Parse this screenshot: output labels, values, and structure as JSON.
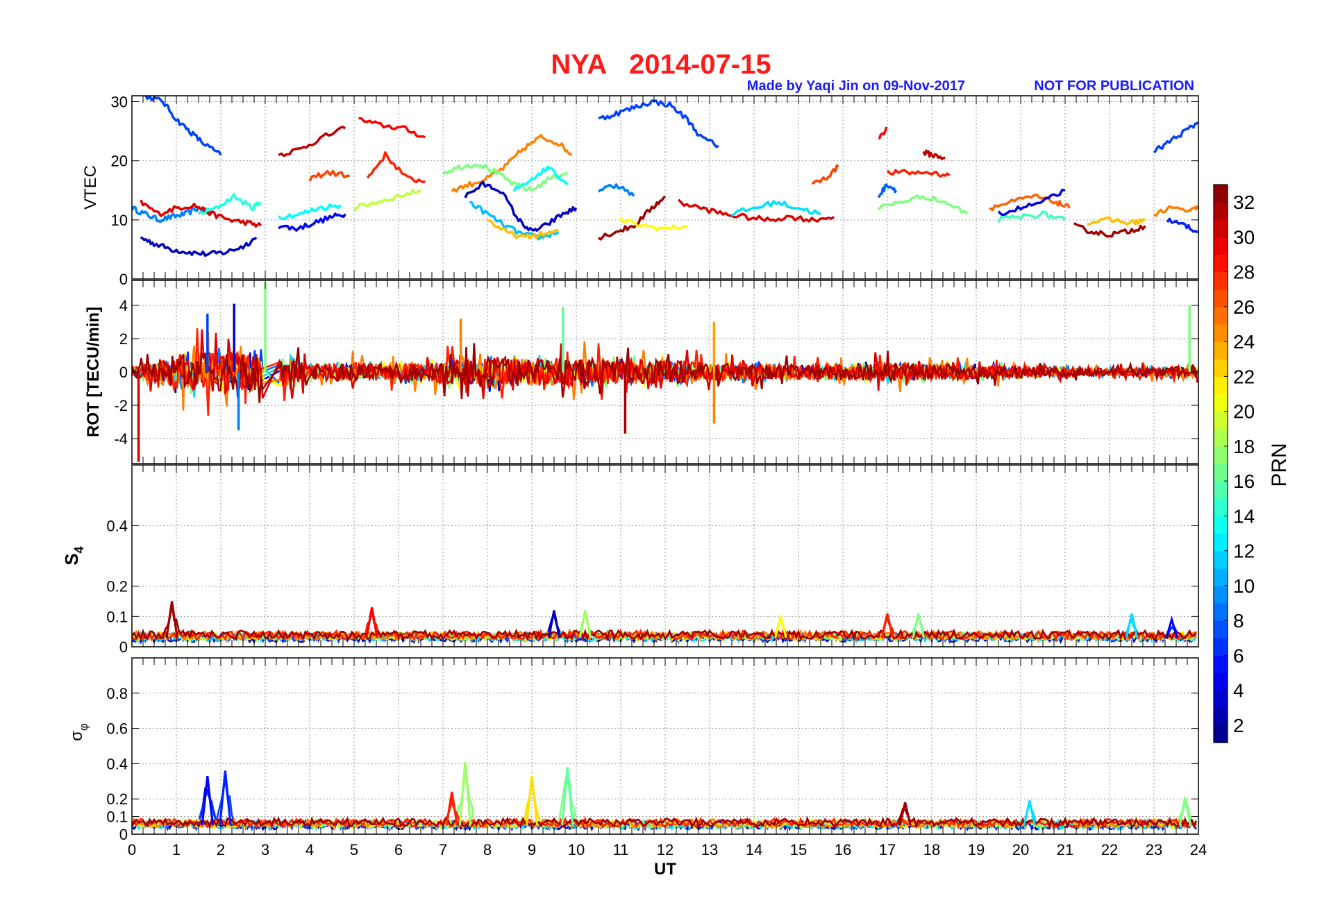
{
  "figure": {
    "title": "NYA   2014-07-15",
    "credit": "Made by Yaqi Jin on 09-Nov-2017",
    "notice": "NOT FOR PUBLICATION",
    "title_color": "#ff1a1a",
    "credit_color": "#1a1aff"
  },
  "chart_data": [
    {
      "type": "line",
      "panel": "vtec",
      "ylabel": "VTEC",
      "xlim": [
        0,
        24
      ],
      "ylim": [
        0,
        31
      ],
      "yticks": [
        0,
        10,
        20,
        30
      ],
      "grid": true,
      "series": [
        {
          "prn": 9,
          "x": [
            0.0,
            0.3,
            0.6,
            0.9,
            1.2,
            1.5,
            1.8
          ],
          "y": [
            12,
            11,
            10,
            10.5,
            11,
            12,
            11
          ]
        },
        {
          "prn": 3,
          "x": [
            0.2,
            0.5,
            0.9,
            1.3,
            1.7,
            2.1,
            2.5,
            2.8
          ],
          "y": [
            7,
            6,
            5,
            4.5,
            4.2,
            4.5,
            5.5,
            7
          ]
        },
        {
          "prn": 7,
          "x": [
            0.3,
            0.7,
            1.0,
            1.3,
            1.6,
            2.0
          ],
          "y": [
            31,
            30,
            27,
            25,
            23,
            21
          ]
        },
        {
          "prn": 30,
          "x": [
            0.2,
            0.6,
            1.0,
            1.4,
            1.8,
            2.2,
            2.6,
            2.9
          ],
          "y": [
            13,
            11,
            12,
            12.5,
            11,
            10,
            9.5,
            9
          ]
        },
        {
          "prn": 14,
          "x": [
            1.5,
            1.9,
            2.3,
            2.7,
            2.9
          ],
          "y": [
            11,
            12,
            14,
            12,
            13
          ]
        },
        {
          "prn": 5,
          "x": [
            3.3,
            3.7,
            4.1,
            4.5,
            4.8
          ],
          "y": [
            9,
            8.5,
            9.5,
            10.5,
            11
          ]
        },
        {
          "prn": 13,
          "x": [
            3.3,
            3.8,
            4.2,
            4.7
          ],
          "y": [
            10.5,
            11,
            12,
            12.5
          ]
        },
        {
          "prn": 31,
          "x": [
            3.3,
            3.8,
            4.3,
            4.8
          ],
          "y": [
            21,
            22,
            24,
            25.5
          ]
        },
        {
          "prn": 27,
          "x": [
            4.0,
            4.4,
            4.9
          ],
          "y": [
            17,
            18,
            17.5
          ]
        },
        {
          "prn": 29,
          "x": [
            5.1,
            5.6,
            6.1,
            6.6
          ],
          "y": [
            27,
            26,
            25.5,
            24
          ]
        },
        {
          "prn": 28,
          "x": [
            5.3,
            5.7,
            6.2,
            6.6
          ],
          "y": [
            17,
            21,
            17,
            16.5
          ]
        },
        {
          "prn": 19,
          "x": [
            5.0,
            5.5,
            6.0,
            6.5
          ],
          "y": [
            12,
            13,
            14,
            15
          ]
        },
        {
          "prn": 25,
          "x": [
            7.2,
            7.6,
            8.0,
            8.4,
            8.8,
            9.2,
            9.6,
            9.9
          ],
          "y": [
            15,
            16,
            17,
            19,
            22,
            24,
            23,
            21
          ]
        },
        {
          "prn": 17,
          "x": [
            7.0,
            7.4,
            7.8,
            8.2,
            8.6,
            9.0,
            9.4,
            9.8
          ],
          "y": [
            18,
            19,
            19.5,
            18,
            16,
            15,
            17,
            18
          ]
        },
        {
          "prn": 3,
          "x": [
            7.5,
            7.9,
            8.3,
            8.7,
            9.0,
            9.3,
            9.7,
            10.0
          ],
          "y": [
            14,
            16,
            15,
            10,
            8,
            9,
            11,
            12
          ]
        },
        {
          "prn": 11,
          "x": [
            7.6,
            8.0,
            8.4,
            8.8,
            9.2,
            9.6
          ],
          "y": [
            13,
            11,
            9,
            7.5,
            7,
            8
          ]
        },
        {
          "prn": 23,
          "x": [
            8.0,
            8.4,
            8.8,
            9.2,
            9.6
          ],
          "y": [
            10,
            8,
            7,
            7.5,
            8
          ]
        },
        {
          "prn": 13,
          "x": [
            8.6,
            9.0,
            9.4,
            9.8
          ],
          "y": [
            15,
            17,
            19,
            16
          ]
        },
        {
          "prn": 32,
          "x": [
            10.5,
            10.9,
            11.3,
            11.7,
            12.0
          ],
          "y": [
            7,
            8,
            9,
            12,
            14
          ]
        },
        {
          "prn": 7,
          "x": [
            10.5,
            10.9,
            11.3,
            11.7,
            12.1,
            12.5,
            12.8,
            13.2
          ],
          "y": [
            27,
            28,
            29,
            30,
            29.5,
            27,
            24,
            22.5
          ]
        },
        {
          "prn": 9,
          "x": [
            10.5,
            10.9,
            11.3
          ],
          "y": [
            15,
            16,
            14
          ]
        },
        {
          "prn": 21,
          "x": [
            11.0,
            11.5,
            12.0,
            12.5
          ],
          "y": [
            10,
            9,
            8.5,
            9
          ]
        },
        {
          "prn": 30,
          "x": [
            12.3,
            12.8,
            13.3,
            13.8,
            14.3,
            14.8,
            15.3,
            15.8
          ],
          "y": [
            13,
            12,
            11,
            10.5,
            10,
            10.5,
            10,
            10.5
          ]
        },
        {
          "prn": 12,
          "x": [
            13.5,
            14.0,
            14.5,
            15.0,
            15.5
          ],
          "y": [
            11,
            12,
            13,
            12,
            11
          ]
        },
        {
          "prn": 27,
          "x": [
            15.3,
            15.6,
            15.9
          ],
          "y": [
            16,
            17,
            19
          ]
        },
        {
          "prn": 29,
          "x": [
            16.8,
            17.0
          ],
          "y": [
            24,
            25.5
          ]
        },
        {
          "prn": 28,
          "x": [
            17.0,
            17.5,
            18.0,
            18.4
          ],
          "y": [
            18,
            18,
            18,
            17.5
          ]
        },
        {
          "prn": 31,
          "x": [
            17.8,
            18.0,
            18.3
          ],
          "y": [
            21.5,
            21,
            20.5
          ]
        },
        {
          "prn": 17,
          "x": [
            16.8,
            17.3,
            17.8,
            18.3,
            18.8
          ],
          "y": [
            12,
            13,
            14,
            13,
            11
          ]
        },
        {
          "prn": 8,
          "x": [
            16.8,
            17.0,
            17.2
          ],
          "y": [
            14,
            16,
            15
          ]
        },
        {
          "prn": 26,
          "x": [
            19.3,
            19.8,
            20.3,
            20.8,
            21.1
          ],
          "y": [
            12,
            13,
            14,
            13,
            12
          ]
        },
        {
          "prn": 4,
          "x": [
            19.5,
            20.0,
            20.5,
            21.0
          ],
          "y": [
            11,
            12,
            13,
            15
          ]
        },
        {
          "prn": 15,
          "x": [
            19.5,
            20.0,
            20.5,
            21.0
          ],
          "y": [
            10,
            10.5,
            11,
            10
          ]
        },
        {
          "prn": 32,
          "x": [
            21.2,
            21.6,
            22.0,
            22.4,
            22.8
          ],
          "y": [
            9,
            8,
            7.5,
            8,
            9
          ]
        },
        {
          "prn": 23,
          "x": [
            21.5,
            22.0,
            22.5,
            22.8
          ],
          "y": [
            9.5,
            10,
            9.5,
            10
          ]
        },
        {
          "prn": 7,
          "x": [
            23.0,
            23.3,
            23.7,
            24.0
          ],
          "y": [
            21.5,
            23,
            25,
            26.5
          ]
        },
        {
          "prn": 25,
          "x": [
            23.0,
            23.4,
            23.8,
            24.0
          ],
          "y": [
            11,
            12,
            11.5,
            12
          ]
        },
        {
          "prn": 6,
          "x": [
            23.3,
            23.7,
            24.0
          ],
          "y": [
            10,
            9,
            8
          ]
        }
      ]
    },
    {
      "type": "line",
      "panel": "rot",
      "ylabel": "ROT [TECU/min]",
      "xlim": [
        0,
        24
      ],
      "ylim": [
        -5.5,
        5.5
      ],
      "yticks": [
        -4,
        -2,
        0,
        2,
        4
      ],
      "grid": true,
      "spikes": [
        {
          "prn": 30,
          "x": 0.15,
          "y": -5.4
        },
        {
          "prn": 7,
          "x": 1.7,
          "y": 3.5
        },
        {
          "prn": 3,
          "x": 2.3,
          "y": 4.1
        },
        {
          "prn": 17,
          "x": 3.0,
          "y": 5.4
        },
        {
          "prn": 9,
          "x": 2.4,
          "y": -3.5
        },
        {
          "prn": 25,
          "x": 7.4,
          "y": 3.2
        },
        {
          "prn": 16,
          "x": 9.7,
          "y": 3.9
        },
        {
          "prn": 32,
          "x": 11.1,
          "y": -3.7
        },
        {
          "prn": 24,
          "x": 13.1,
          "y": 3.0
        },
        {
          "prn": 25,
          "x": 13.1,
          "y": -3.1
        },
        {
          "prn": 17,
          "x": 23.8,
          "y": 4.0
        }
      ],
      "noise_envelope": [
        0.4,
        1.5,
        1.8,
        1.6,
        0.7,
        0.8,
        0.7,
        1.0,
        1.3,
        1.2,
        1.2,
        1.0,
        1.1,
        0.8,
        0.7,
        0.6,
        0.7,
        0.8,
        0.7,
        0.6,
        0.5,
        0.4,
        0.3,
        0.4,
        0.5
      ]
    },
    {
      "type": "line",
      "panel": "s4",
      "ylabel": "S4",
      "xlim": [
        0,
        24
      ],
      "ylim": [
        0,
        0.6
      ],
      "yticks": [
        0,
        0.1,
        0.2,
        0.4
      ],
      "grid": true,
      "baseline": 0.03,
      "peaks": [
        {
          "prn": 32,
          "x": 0.9,
          "y": 0.15
        },
        {
          "prn": 29,
          "x": 5.4,
          "y": 0.13
        },
        {
          "prn": 3,
          "x": 9.5,
          "y": 0.12
        },
        {
          "prn": 18,
          "x": 10.2,
          "y": 0.12
        },
        {
          "prn": 21,
          "x": 14.6,
          "y": 0.1
        },
        {
          "prn": 28,
          "x": 17.0,
          "y": 0.11
        },
        {
          "prn": 17,
          "x": 17.7,
          "y": 0.11
        },
        {
          "prn": 12,
          "x": 22.5,
          "y": 0.11
        },
        {
          "prn": 5,
          "x": 23.4,
          "y": 0.09
        }
      ]
    },
    {
      "type": "line",
      "panel": "sigma_phi",
      "ylabel": "σφ",
      "xlabel": "UT",
      "xlim": [
        0,
        24
      ],
      "ylim": [
        0,
        1
      ],
      "yticks": [
        0,
        0.1,
        0.2,
        0.4,
        0.6,
        0.8
      ],
      "xticks": [
        0,
        1,
        2,
        3,
        4,
        5,
        6,
        7,
        8,
        9,
        10,
        11,
        12,
        13,
        14,
        15,
        16,
        17,
        18,
        19,
        20,
        21,
        22,
        23,
        24
      ],
      "grid": true,
      "baseline": 0.05,
      "peaks": [
        {
          "prn": 5,
          "x": 1.7,
          "y": 0.33
        },
        {
          "prn": 6,
          "x": 2.1,
          "y": 0.36
        },
        {
          "prn": 18,
          "x": 7.5,
          "y": 0.41
        },
        {
          "prn": 22,
          "x": 9.0,
          "y": 0.33
        },
        {
          "prn": 16,
          "x": 9.8,
          "y": 0.38
        },
        {
          "prn": 28,
          "x": 7.2,
          "y": 0.24
        },
        {
          "prn": 32,
          "x": 17.4,
          "y": 0.18
        },
        {
          "prn": 12,
          "x": 20.2,
          "y": 0.19
        },
        {
          "prn": 17,
          "x": 23.7,
          "y": 0.21
        }
      ]
    }
  ],
  "colorbar": {
    "label": "PRN",
    "range": [
      1,
      33
    ],
    "ticks": [
      2,
      4,
      6,
      8,
      10,
      12,
      14,
      16,
      18,
      20,
      22,
      24,
      26,
      28,
      30,
      32
    ],
    "colormap": "jet"
  }
}
